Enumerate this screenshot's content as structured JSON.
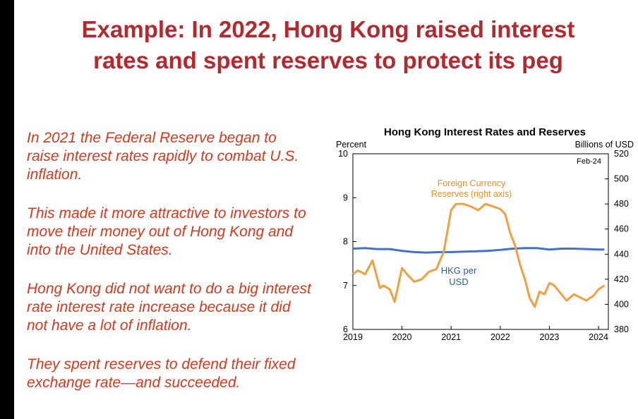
{
  "slide": {
    "title_line1": "Example: In 2022, Hong Kong raised interest",
    "title_line2": "rates and spent reserves to protect its peg",
    "paragraphs": [
      [
        "In 2021 the Federal Reserve began to",
        "raise interest rates rapidly to combat U.S.",
        "inflation."
      ],
      [
        "This made it more attractive to investors to",
        "move their money out of Hong Kong and",
        "into the United States."
      ],
      [
        "Hong Kong did not want to do a big interest",
        "rate interest rate increase because it did",
        "not have a lot of inflation."
      ],
      [
        "They spent reserves to defend their fixed",
        "exchange rate—and succeeded."
      ]
    ]
  },
  "colors": {
    "title": "#b32a2e",
    "body_text": "#d5381c",
    "hkd_series": "#4472c4",
    "reserves_series": "#f0a040",
    "hkd_label": "#2e5b8a",
    "reserves_label": "#e8902c"
  },
  "chart_data": {
    "type": "line",
    "title": "Hong Kong Interest Rates and Reserves",
    "ylabel_left": "Percent",
    "ylabel_right": "Billions of USD",
    "note": "Feb-24",
    "xlim": [
      2019,
      2024.2
    ],
    "ylim_left": [
      6,
      10
    ],
    "ylim_right": [
      380,
      520
    ],
    "x_ticks": [
      2019,
      2020,
      2021,
      2022,
      2023,
      2024
    ],
    "y_ticks_left": [
      6,
      7,
      8,
      9,
      10
    ],
    "y_ticks_right": [
      380,
      400,
      420,
      440,
      460,
      480,
      500,
      520
    ],
    "grid": false,
    "series": [
      {
        "name": "HKG per USD",
        "axis": "left",
        "label_lines": [
          "HKG per",
          "USD"
        ],
        "x": [
          2019.0,
          2019.25,
          2019.5,
          2019.75,
          2020.0,
          2020.25,
          2020.5,
          2020.75,
          2021.0,
          2021.25,
          2021.5,
          2021.75,
          2022.0,
          2022.25,
          2022.5,
          2022.75,
          2023.0,
          2023.25,
          2023.5,
          2023.75,
          2024.0,
          2024.12
        ],
        "values": [
          7.84,
          7.85,
          7.83,
          7.83,
          7.79,
          7.76,
          7.75,
          7.76,
          7.76,
          7.77,
          7.78,
          7.79,
          7.81,
          7.84,
          7.85,
          7.85,
          7.82,
          7.84,
          7.84,
          7.83,
          7.82,
          7.82
        ]
      },
      {
        "name": "Foreign Currency Reserves (right axis)",
        "axis": "right",
        "label_lines": [
          "Foreign Currency",
          "Reserves (right axis)"
        ],
        "x": [
          2019.0,
          2019.1,
          2019.25,
          2019.4,
          2019.55,
          2019.62,
          2019.75,
          2019.85,
          2020.0,
          2020.1,
          2020.25,
          2020.4,
          2020.55,
          2020.7,
          2020.85,
          2021.0,
          2021.1,
          2021.25,
          2021.4,
          2021.55,
          2021.7,
          2021.85,
          2022.0,
          2022.1,
          2022.2,
          2022.3,
          2022.4,
          2022.5,
          2022.6,
          2022.7,
          2022.8,
          2022.9,
          2023.0,
          2023.1,
          2023.2,
          2023.35,
          2023.5,
          2023.6,
          2023.75,
          2023.9,
          2024.0,
          2024.12
        ],
        "values": [
          424,
          427,
          424,
          435,
          413,
          415,
          412,
          402,
          429,
          424,
          418,
          420,
          426,
          428,
          442,
          475,
          480,
          480,
          478,
          475,
          480,
          478,
          476,
          472,
          457,
          447,
          432,
          420,
          405,
          398,
          410,
          408,
          417,
          415,
          410,
          403,
          408,
          406,
          403,
          407,
          412,
          415
        ]
      }
    ]
  }
}
